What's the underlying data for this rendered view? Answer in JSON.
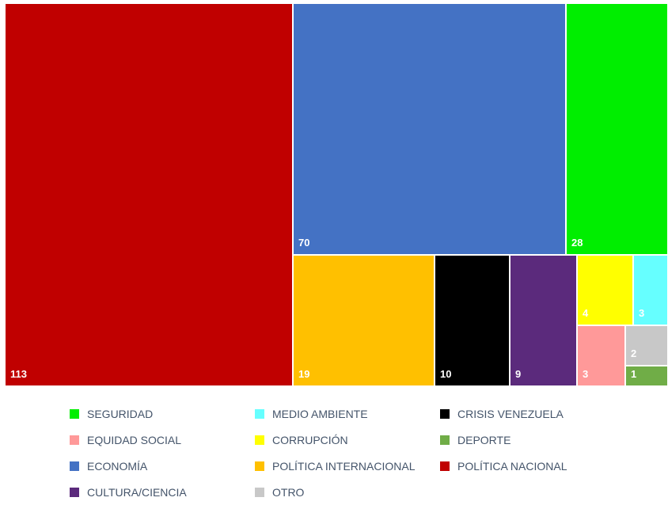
{
  "chart_data": {
    "type": "treemap",
    "items": [
      {
        "name": "POLÍTICA NACIONAL",
        "value": 113,
        "color": "#c00000"
      },
      {
        "name": "ECONOMÍA",
        "value": 70,
        "color": "#4472c4"
      },
      {
        "name": "SEGURIDAD",
        "value": 28,
        "color": "#00ee00"
      },
      {
        "name": "POLÍTICA INTERNACIONAL",
        "value": 19,
        "color": "#ffc000"
      },
      {
        "name": "CRISIS VENEZUELA",
        "value": 10,
        "color": "#000000"
      },
      {
        "name": "CULTURA/CIENCIA",
        "value": 9,
        "color": "#5b2a7c"
      },
      {
        "name": "CORRUPCIÓN",
        "value": 4,
        "color": "#ffff00"
      },
      {
        "name": "MEDIO AMBIENTE",
        "value": 3,
        "color": "#66ffff"
      },
      {
        "name": "EQUIDAD SOCIAL",
        "value": 3,
        "color": "#ff9999"
      },
      {
        "name": "OTRO",
        "value": 2,
        "color": "#c8c8c8"
      },
      {
        "name": "DEPORTE",
        "value": 1,
        "color": "#70ad47"
      }
    ],
    "legend": {
      "position": "bottom",
      "rows": [
        [
          {
            "label": "SEGURIDAD",
            "color": "#00ee00"
          },
          {
            "label": "MEDIO AMBIENTE",
            "color": "#66ffff"
          },
          {
            "label": "CRISIS VENEZUELA",
            "color": "#000000"
          }
        ],
        [
          {
            "label": "EQUIDAD SOCIAL",
            "color": "#ff9999"
          },
          {
            "label": "CORRUPCIÓN",
            "color": "#ffff00"
          },
          {
            "label": "DEPORTE",
            "color": "#70ad47"
          }
        ],
        [
          {
            "label": "ECONOMÍA",
            "color": "#4472c4"
          },
          {
            "label": "POLÍTICA INTERNACIONAL",
            "color": "#ffc000"
          },
          {
            "label": "POLÍTICA NACIONAL",
            "color": "#c00000"
          }
        ],
        [
          {
            "label": "CULTURA/CIENCIA",
            "color": "#5b2a7c"
          },
          {
            "label": "OTRO",
            "color": "#c8c8c8"
          }
        ]
      ]
    }
  }
}
